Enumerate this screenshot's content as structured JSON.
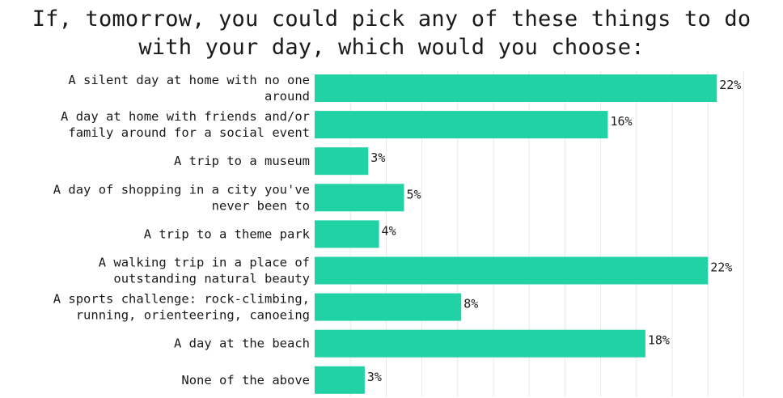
{
  "chart_data": {
    "type": "bar",
    "orientation": "horizontal",
    "title": "If, tomorrow, you could pick any of these things to do with your day, which would you choose:",
    "categories": [
      [
        "A silent day at home with no one",
        "around"
      ],
      [
        "A day at home with friends and/or",
        "family around for a social event"
      ],
      [
        "A trip to a museum"
      ],
      [
        "A day of shopping in a city you've",
        "never been to"
      ],
      [
        "A trip to a theme park"
      ],
      [
        "A walking trip in a place of",
        "outstanding natural beauty"
      ],
      [
        "A sports challenge: rock-climbing,",
        "running, orienteering, canoeing"
      ],
      [
        "A day at the beach"
      ],
      [
        "None of the above"
      ]
    ],
    "values": [
      22.5,
      16.4,
      3.0,
      5.0,
      3.6,
      22.0,
      8.2,
      18.5,
      2.8
    ],
    "value_labels": [
      "22%",
      "16%",
      "3%",
      "5%",
      "4%",
      "22%",
      "8%",
      "18%",
      "3%"
    ],
    "xlim": [
      0,
      25
    ],
    "grid": true,
    "bar_color": "#20d2a4",
    "grid_color": "#e8e8e8"
  }
}
